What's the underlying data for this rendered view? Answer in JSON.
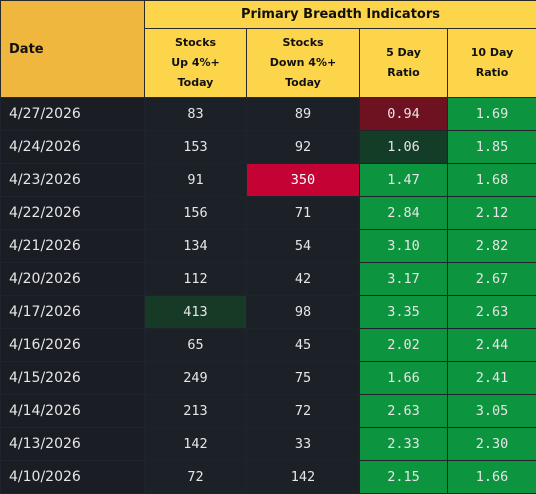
{
  "header": {
    "date_label": "Date",
    "group_label": "Primary Breadth Indicators",
    "columns": [
      "Stocks\nUp 4%+\nToday",
      "Stocks\nDown 4%+\nToday",
      "5 Day\nRatio",
      "10 Day\nRatio"
    ]
  },
  "colors": {
    "header_yellow": "#fdd54a",
    "ratio_green": "#0d943f",
    "ratio_dark_green": "#143d27",
    "ratio_dark_red": "#6e1120",
    "down_highlight_red": "#c40233",
    "up_highlight_green": "#163a26"
  },
  "rows": [
    {
      "date": "4/27/2026",
      "up": "83",
      "down": "89",
      "r5": "0.94",
      "r10": "1.69",
      "up_style": "num",
      "down_style": "num",
      "r5_style": "dr",
      "r10_style": "g"
    },
    {
      "date": "4/24/2026",
      "up": "153",
      "down": "92",
      "r5": "1.06",
      "r10": "1.85",
      "up_style": "num",
      "down_style": "num",
      "r5_style": "dg",
      "r10_style": "g"
    },
    {
      "date": "4/23/2026",
      "up": "91",
      "down": "350",
      "r5": "1.47",
      "r10": "1.68",
      "up_style": "num",
      "down_style": "down-hl",
      "r5_style": "g",
      "r10_style": "g"
    },
    {
      "date": "4/22/2026",
      "up": "156",
      "down": "71",
      "r5": "2.84",
      "r10": "2.12",
      "up_style": "num",
      "down_style": "num",
      "r5_style": "g",
      "r10_style": "g"
    },
    {
      "date": "4/21/2026",
      "up": "134",
      "down": "54",
      "r5": "3.10",
      "r10": "2.82",
      "up_style": "num",
      "down_style": "num",
      "r5_style": "g",
      "r10_style": "g"
    },
    {
      "date": "4/20/2026",
      "up": "112",
      "down": "42",
      "r5": "3.17",
      "r10": "2.67",
      "up_style": "num",
      "down_style": "num",
      "r5_style": "g",
      "r10_style": "g"
    },
    {
      "date": "4/17/2026",
      "up": "413",
      "down": "98",
      "r5": "3.35",
      "r10": "2.63",
      "up_style": "up-hl",
      "down_style": "num",
      "r5_style": "g",
      "r10_style": "g"
    },
    {
      "date": "4/16/2026",
      "up": "65",
      "down": "45",
      "r5": "2.02",
      "r10": "2.44",
      "up_style": "num",
      "down_style": "num",
      "r5_style": "g",
      "r10_style": "g"
    },
    {
      "date": "4/15/2026",
      "up": "249",
      "down": "75",
      "r5": "1.66",
      "r10": "2.41",
      "up_style": "num",
      "down_style": "num",
      "r5_style": "g",
      "r10_style": "g"
    },
    {
      "date": "4/14/2026",
      "up": "213",
      "down": "72",
      "r5": "2.63",
      "r10": "3.05",
      "up_style": "num",
      "down_style": "num",
      "r5_style": "g",
      "r10_style": "g"
    },
    {
      "date": "4/13/2026",
      "up": "142",
      "down": "33",
      "r5": "2.33",
      "r10": "2.30",
      "up_style": "num",
      "down_style": "num",
      "r5_style": "g",
      "r10_style": "g"
    },
    {
      "date": "4/10/2026",
      "up": "72",
      "down": "142",
      "r5": "2.15",
      "r10": "1.66",
      "up_style": "num",
      "down_style": "num",
      "r5_style": "g",
      "r10_style": "g"
    }
  ]
}
